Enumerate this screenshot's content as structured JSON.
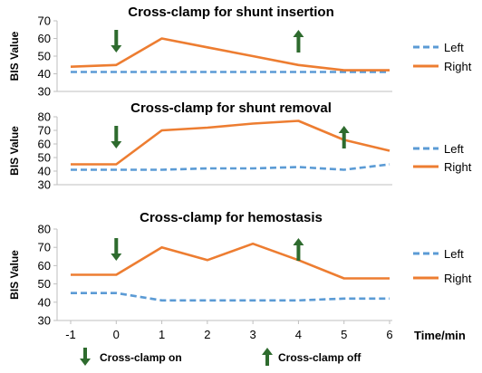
{
  "chart_data": [
    {
      "type": "line",
      "title": "Cross-clamp for shunt insertion",
      "ylabel": "BIS Value",
      "x": [
        -1,
        0,
        1,
        2,
        3,
        4,
        5,
        6
      ],
      "ylim": [
        30,
        70
      ],
      "yticks": [
        30,
        40,
        50,
        60,
        70
      ],
      "series": [
        {
          "name": "Left",
          "color": "#5b9bd5",
          "dashed": true,
          "values": [
            41,
            41,
            41,
            41,
            41,
            41,
            41,
            41
          ]
        },
        {
          "name": "Right",
          "color": "#ed7d31",
          "dashed": false,
          "values": [
            44,
            45,
            60,
            55,
            50,
            45,
            42,
            42
          ]
        }
      ],
      "clamp_on_x": 0,
      "clamp_off_x": 4
    },
    {
      "type": "line",
      "title": "Cross-clamp for shunt removal",
      "ylabel": "BIS Value",
      "x": [
        -1,
        0,
        1,
        2,
        3,
        4,
        5,
        6
      ],
      "ylim": [
        30,
        80
      ],
      "yticks": [
        30,
        40,
        50,
        60,
        70,
        80
      ],
      "series": [
        {
          "name": "Left",
          "color": "#5b9bd5",
          "dashed": true,
          "values": [
            41,
            41,
            41,
            42,
            42,
            43,
            41,
            45
          ]
        },
        {
          "name": "Right",
          "color": "#ed7d31",
          "dashed": false,
          "values": [
            45,
            45,
            70,
            72,
            75,
            77,
            63,
            55
          ]
        }
      ],
      "clamp_on_x": 0,
      "clamp_off_x": 5
    },
    {
      "type": "line",
      "title": "Cross-clamp for hemostasis",
      "ylabel": "BIS Value",
      "x": [
        -1,
        0,
        1,
        2,
        3,
        4,
        5,
        6
      ],
      "ylim": [
        30,
        80
      ],
      "yticks": [
        30,
        40,
        50,
        60,
        70,
        80
      ],
      "series": [
        {
          "name": "Left",
          "color": "#5b9bd5",
          "dashed": true,
          "values": [
            45,
            45,
            41,
            41,
            41,
            41,
            42,
            42
          ]
        },
        {
          "name": "Right",
          "color": "#ed7d31",
          "dashed": false,
          "values": [
            55,
            55,
            70,
            63,
            72,
            63,
            53,
            53
          ]
        }
      ],
      "clamp_on_x": 0,
      "clamp_off_x": 4
    }
  ],
  "xticks": [
    "-1",
    "0",
    "1",
    "2",
    "3",
    "4",
    "5",
    "6"
  ],
  "xlabel": "Time/min",
  "footer": {
    "clamp_on_label": "Cross-clamp on",
    "clamp_off_label": "Cross-clamp off"
  },
  "colors": {
    "arrow": "#2e6b2e",
    "axis": "#bfbfbf"
  }
}
